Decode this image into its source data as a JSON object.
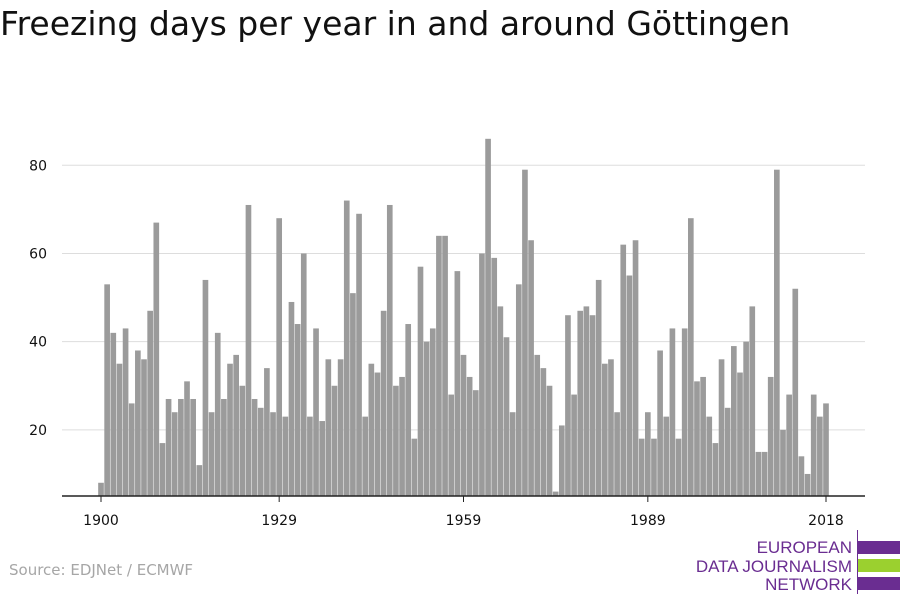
{
  "title": "Freezing days per year in and around Göttingen",
  "source": "Source: EDJNet / ECMWF",
  "logo": {
    "lines": [
      "EUROPEAN",
      "DATA JOURNALISM",
      "NETWORK"
    ],
    "colors": {
      "purple": "#6a2d91",
      "green": "#9bd02f"
    }
  },
  "chart_data": {
    "type": "bar",
    "title": "Freezing days per year in and around Göttingen",
    "xlabel": "",
    "ylabel": "",
    "bar_color": "#9b9b9b",
    "grid": true,
    "ylim": [
      5,
      88
    ],
    "y_ticks": [
      20,
      40,
      60,
      80
    ],
    "x_ticks": [
      1900,
      1929,
      1959,
      1989,
      2018
    ],
    "x": [
      1900,
      1901,
      1902,
      1903,
      1904,
      1905,
      1906,
      1907,
      1908,
      1909,
      1910,
      1911,
      1912,
      1913,
      1914,
      1915,
      1916,
      1917,
      1918,
      1919,
      1920,
      1921,
      1922,
      1923,
      1924,
      1925,
      1926,
      1927,
      1928,
      1929,
      1930,
      1931,
      1932,
      1933,
      1934,
      1935,
      1936,
      1937,
      1938,
      1939,
      1940,
      1941,
      1942,
      1943,
      1944,
      1945,
      1946,
      1947,
      1948,
      1949,
      1950,
      1951,
      1952,
      1953,
      1954,
      1955,
      1956,
      1957,
      1958,
      1959,
      1960,
      1961,
      1962,
      1963,
      1964,
      1965,
      1966,
      1967,
      1968,
      1969,
      1970,
      1971,
      1972,
      1973,
      1974,
      1975,
      1976,
      1977,
      1978,
      1979,
      1980,
      1981,
      1982,
      1983,
      1984,
      1985,
      1986,
      1987,
      1988,
      1989,
      1990,
      1991,
      1992,
      1993,
      1994,
      1995,
      1996,
      1997,
      1998,
      1999,
      2000,
      2001,
      2002,
      2003,
      2004,
      2005,
      2006,
      2007,
      2008,
      2009,
      2010,
      2011,
      2012,
      2013,
      2014,
      2015,
      2016,
      2017,
      2018
    ],
    "values": [
      8,
      53,
      42,
      35,
      43,
      26,
      38,
      36,
      47,
      67,
      17,
      27,
      24,
      27,
      31,
      27,
      12,
      54,
      24,
      42,
      27,
      35,
      37,
      30,
      71,
      27,
      25,
      34,
      24,
      68,
      23,
      49,
      44,
      60,
      23,
      43,
      22,
      36,
      30,
      36,
      72,
      51,
      69,
      23,
      35,
      33,
      47,
      71,
      30,
      32,
      44,
      18,
      57,
      40,
      43,
      64,
      64,
      28,
      56,
      37,
      32,
      29,
      60,
      86,
      59,
      48,
      41,
      24,
      53,
      79,
      63,
      37,
      34,
      30,
      6,
      21,
      46,
      28,
      47,
      48,
      46,
      54,
      35,
      36,
      24,
      62,
      55,
      63,
      18,
      24,
      18,
      38,
      23,
      43,
      18,
      43,
      68,
      31,
      32,
      23,
      17,
      36,
      25,
      39,
      33,
      40,
      48,
      15,
      15,
      32,
      79,
      20,
      28,
      52,
      14,
      10,
      28,
      23,
      26
    ]
  }
}
